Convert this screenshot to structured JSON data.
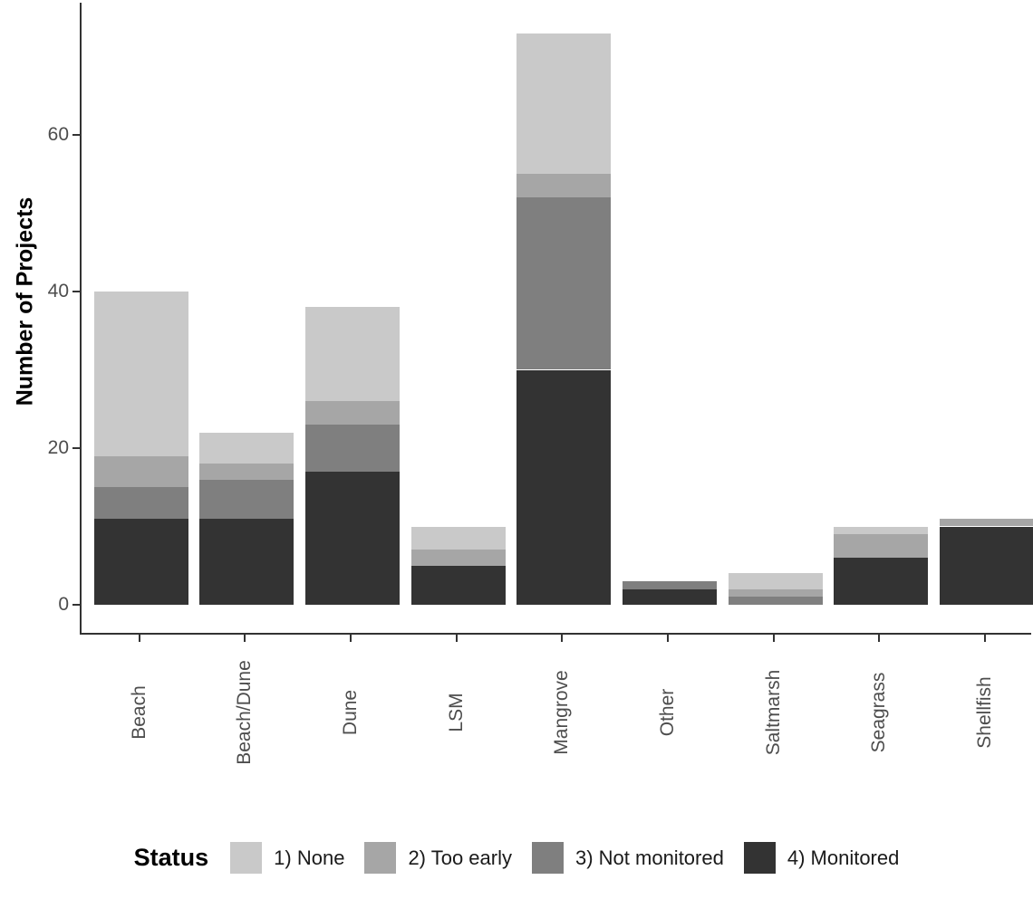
{
  "chart_data": {
    "type": "bar",
    "stacked": true,
    "orientation": "vertical",
    "title": "",
    "xlabel": "",
    "ylabel": "Number of Projects",
    "ylim": [
      0,
      75
    ],
    "yticks": [
      0,
      20,
      40,
      60
    ],
    "grid": "off",
    "background": "#ffffff",
    "categories": [
      "Beach",
      "Beach/Dune",
      "Dune",
      "LSM",
      "Mangrove",
      "Other",
      "Saltmarsh",
      "Seagrass",
      "Shellfish"
    ],
    "totals": [
      40,
      22,
      38,
      10,
      73,
      3,
      4,
      10,
      11
    ],
    "series": [
      {
        "name": "1) None",
        "color": "#c9c9c9",
        "values": [
          21,
          4,
          12,
          3,
          18,
          0,
          2,
          1,
          0
        ]
      },
      {
        "name": "2) Too early",
        "color": "#a6a6a6",
        "values": [
          4,
          2,
          3,
          2,
          3,
          0,
          1,
          3,
          1
        ]
      },
      {
        "name": "3) Not monitored",
        "color": "#7f7f7f",
        "values": [
          4,
          5,
          6,
          0,
          22,
          1,
          1,
          0,
          0
        ]
      },
      {
        "name": "4) Monitored",
        "color": "#333333",
        "values": [
          11,
          11,
          17,
          5,
          30,
          2,
          0,
          6,
          10
        ]
      }
    ],
    "legend": {
      "title": "Status",
      "position": "bottom",
      "entries": [
        "1) None",
        "2) Too early",
        "3) Not monitored",
        "4) Monitored"
      ]
    }
  }
}
